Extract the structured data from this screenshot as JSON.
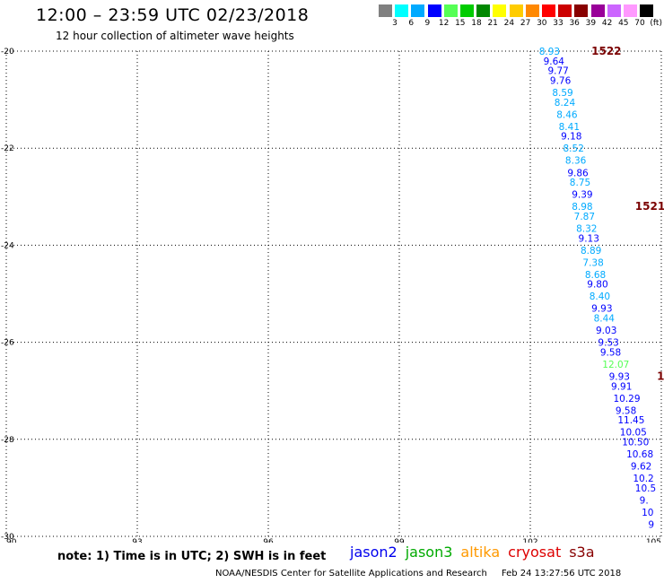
{
  "header": {
    "title": "12:00 – 23:59 UTC 02/23/2018",
    "subtitle": "12 hour collection of altimeter wave heights"
  },
  "legend": {
    "colors": [
      "#808080",
      "#00ffff",
      "#00aaff",
      "#0000ff",
      "#55ff55",
      "#00cc00",
      "#008800",
      "#ffff00",
      "#ffcc00",
      "#ff8800",
      "#ff0000",
      "#cc0000",
      "#880000",
      "#990099",
      "#cc66ff",
      "#ff99ff",
      "#000000"
    ],
    "labels": [
      "3",
      "6",
      "9",
      "12",
      "15",
      "18",
      "21",
      "24",
      "27",
      "30",
      "33",
      "36",
      "39",
      "42",
      "45",
      "70",
      "(ft)"
    ]
  },
  "map": {
    "lat_ticks": [
      -20,
      -22,
      -24,
      -26,
      -28,
      -30
    ],
    "lat_labels": [
      "-20",
      "-22",
      "-24",
      "-26",
      "-28",
      "-30"
    ],
    "lon_ticks": [
      90,
      93,
      96,
      99,
      102,
      105
    ],
    "lon_labels": [
      "90",
      "93",
      "96",
      "99",
      "102",
      "105"
    ],
    "lat_range": [
      -30,
      -20
    ],
    "lon_range": [
      90,
      105
    ],
    "grid": "dotted",
    "pass_labels": [
      {
        "text": "1522",
        "lon": 103.4,
        "lat": -20.0
      },
      {
        "text": "1521",
        "lon": 104.4,
        "lat": -23.2
      },
      {
        "text": "1",
        "lon": 104.9,
        "lat": -26.7
      }
    ],
    "observations": [
      {
        "text": "8.93",
        "lon": 102.2,
        "lat": -20.0,
        "color": "#00aaff"
      },
      {
        "text": "9.64",
        "lon": 102.3,
        "lat": -20.2,
        "color": "#0000ff"
      },
      {
        "text": "9.77",
        "lon": 102.4,
        "lat": -20.4,
        "color": "#0000ff"
      },
      {
        "text": "9.76",
        "lon": 102.45,
        "lat": -20.6,
        "color": "#0000ff"
      },
      {
        "text": "8.59",
        "lon": 102.5,
        "lat": -20.85,
        "color": "#00aaff"
      },
      {
        "text": "8.24",
        "lon": 102.55,
        "lat": -21.05,
        "color": "#00aaff"
      },
      {
        "text": "8.46",
        "lon": 102.6,
        "lat": -21.3,
        "color": "#00aaff"
      },
      {
        "text": "8.41",
        "lon": 102.65,
        "lat": -21.55,
        "color": "#00aaff"
      },
      {
        "text": "9.18",
        "lon": 102.7,
        "lat": -21.75,
        "color": "#0000ff"
      },
      {
        "text": "8.52",
        "lon": 102.75,
        "lat": -22.0,
        "color": "#00aaff"
      },
      {
        "text": "8.36",
        "lon": 102.8,
        "lat": -22.25,
        "color": "#00aaff"
      },
      {
        "text": "9.86",
        "lon": 102.85,
        "lat": -22.5,
        "color": "#0000ff"
      },
      {
        "text": "8.75",
        "lon": 102.9,
        "lat": -22.7,
        "color": "#00aaff"
      },
      {
        "text": "9.39",
        "lon": 102.95,
        "lat": -22.95,
        "color": "#0000ff"
      },
      {
        "text": "8.98",
        "lon": 102.95,
        "lat": -23.2,
        "color": "#00aaff"
      },
      {
        "text": "7.87",
        "lon": 103.0,
        "lat": -23.4,
        "color": "#00aaff"
      },
      {
        "text": "8.32",
        "lon": 103.05,
        "lat": -23.65,
        "color": "#00aaff"
      },
      {
        "text": "9.13",
        "lon": 103.1,
        "lat": -23.85,
        "color": "#0000ff"
      },
      {
        "text": "8.89",
        "lon": 103.15,
        "lat": -24.1,
        "color": "#00aaff"
      },
      {
        "text": "7.38",
        "lon": 103.2,
        "lat": -24.35,
        "color": "#00aaff"
      },
      {
        "text": "8.68",
        "lon": 103.25,
        "lat": -24.6,
        "color": "#00aaff"
      },
      {
        "text": "9.80",
        "lon": 103.3,
        "lat": -24.8,
        "color": "#0000ff"
      },
      {
        "text": "8.40",
        "lon": 103.35,
        "lat": -25.05,
        "color": "#00aaff"
      },
      {
        "text": "9.93",
        "lon": 103.4,
        "lat": -25.3,
        "color": "#0000ff"
      },
      {
        "text": "8.44",
        "lon": 103.45,
        "lat": -25.5,
        "color": "#00aaff"
      },
      {
        "text": "9.03",
        "lon": 103.5,
        "lat": -25.75,
        "color": "#0000ff"
      },
      {
        "text": "9.53",
        "lon": 103.55,
        "lat": -26.0,
        "color": "#0000ff"
      },
      {
        "text": "9.58",
        "lon": 103.6,
        "lat": -26.2,
        "color": "#0000ff"
      },
      {
        "text": "12.07",
        "lon": 103.65,
        "lat": -26.45,
        "color": "#55ff55"
      },
      {
        "text": "9.93",
        "lon": 103.8,
        "lat": -26.7,
        "color": "#0000ff"
      },
      {
        "text": "9.91",
        "lon": 103.85,
        "lat": -26.9,
        "color": "#0000ff"
      },
      {
        "text": "10.29",
        "lon": 103.9,
        "lat": -27.15,
        "color": "#0000ff"
      },
      {
        "text": "9.58",
        "lon": 103.95,
        "lat": -27.4,
        "color": "#0000ff"
      },
      {
        "text": "11.45",
        "lon": 104.0,
        "lat": -27.6,
        "color": "#0000ff"
      },
      {
        "text": "10.05",
        "lon": 104.05,
        "lat": -27.85,
        "color": "#0000ff"
      },
      {
        "text": "10.50",
        "lon": 104.1,
        "lat": -28.05,
        "color": "#0000ff"
      },
      {
        "text": "10.68",
        "lon": 104.2,
        "lat": -28.3,
        "color": "#0000ff"
      },
      {
        "text": "9.62",
        "lon": 104.3,
        "lat": -28.55,
        "color": "#0000ff"
      },
      {
        "text": "10.2",
        "lon": 104.35,
        "lat": -28.8,
        "color": "#0000ff"
      },
      {
        "text": "10.5",
        "lon": 104.4,
        "lat": -29.0,
        "color": "#0000ff"
      },
      {
        "text": "9.",
        "lon": 104.5,
        "lat": -29.25,
        "color": "#0000ff"
      },
      {
        "text": "10",
        "lon": 104.55,
        "lat": -29.5,
        "color": "#0000ff"
      },
      {
        "text": "9",
        "lon": 104.7,
        "lat": -29.75,
        "color": "#0000ff"
      }
    ]
  },
  "note": "note:  1) Time is in UTC;  2) SWH is in feet",
  "satellites": [
    {
      "name": "jason2",
      "color": "#0000ee"
    },
    {
      "name": "jason3",
      "color": "#00aa00"
    },
    {
      "name": "altika",
      "color": "#ff9900"
    },
    {
      "name": "cryosat",
      "color": "#dd0000"
    },
    {
      "name": "s3a",
      "color": "#880000"
    }
  ],
  "footer": {
    "credit": "NOAA/NESDIS Center for Satellite Applications and Research",
    "timestamp": "Feb 24 13:27:56 UTC 2018"
  }
}
